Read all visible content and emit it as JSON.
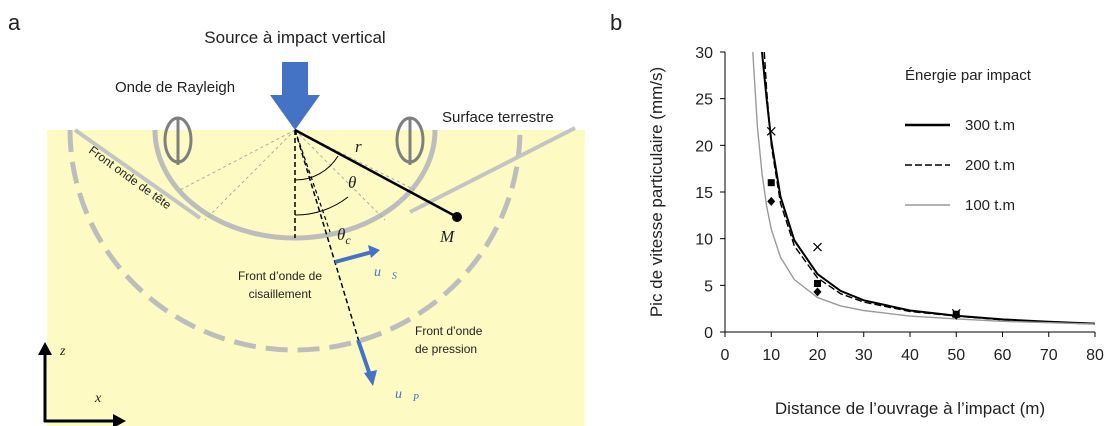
{
  "panels": [
    "a",
    "b"
  ],
  "diagram": {
    "source": "Source à impact vertical",
    "rayleigh": "Onde de Rayleigh",
    "surface": "Surface terrestre",
    "head_wave": "Front onde de tête",
    "r": "r",
    "theta": "θ",
    "theta_c": {
      "text": "θ",
      "sub": "c"
    },
    "M": "M",
    "shear_front": [
      "Front d’onde de",
      "cisaillement"
    ],
    "pressure_front": [
      "Front d’onde",
      "de pression"
    ],
    "u_s": {
      "text": "u⃗",
      "sub": "S"
    },
    "u_p": {
      "text": "u⃗",
      "sub": "P"
    },
    "z": "z",
    "x": "x"
  },
  "chart_data": {
    "type": "line",
    "x_label": "Distance de l’ouvrage à l’impact (m)",
    "y_label": "Pic de vitesse particulaire (mm/s)",
    "legend_title": "Énergie par impact",
    "legend_position": "upper right",
    "xlim": [
      0,
      80
    ],
    "xticks": [
      0,
      10,
      20,
      30,
      40,
      50,
      60,
      70,
      80
    ],
    "ylim": [
      0,
      30
    ],
    "yticks": [
      0,
      5,
      10,
      15,
      20,
      25,
      30
    ],
    "series": [
      {
        "name": "300 t.m",
        "color": "#000000",
        "line_style": "solid",
        "x": [
          8,
          9,
          10,
          12,
          15,
          20,
          25,
          30,
          40,
          50,
          60,
          70,
          80
        ],
        "values": [
          30,
          25,
          20.5,
          14.5,
          9.8,
          6.2,
          4.4,
          3.4,
          2.3,
          1.75,
          1.35,
          1.1,
          0.9
        ]
      },
      {
        "name": "200 t.m",
        "color": "#000000",
        "line_style": "dashed",
        "x": [
          8.5,
          9,
          10,
          12,
          15,
          20,
          25,
          30,
          40,
          50,
          60,
          70,
          80
        ],
        "values": [
          30,
          26,
          20,
          13.8,
          9.2,
          5.8,
          4.1,
          3.2,
          2.2,
          1.7,
          1.3,
          1.05,
          0.85
        ]
      },
      {
        "name": "100 t.m",
        "color": "#9a9a9a",
        "line_style": "solid",
        "x": [
          6,
          7,
          8,
          9,
          10,
          12,
          15,
          20,
          25,
          30,
          40,
          50,
          60,
          70,
          80
        ],
        "values": [
          30,
          22,
          17,
          13.5,
          11,
          8,
          5.6,
          3.7,
          2.8,
          2.3,
          1.7,
          1.4,
          1.15,
          1,
          0.85
        ]
      },
      {
        "color": "#000000",
        "marker": "square",
        "x": [
          10,
          20,
          50
        ],
        "values": [
          16,
          5.2,
          1.9
        ]
      },
      {
        "color": "#000000",
        "marker": "diamond",
        "x": [
          10,
          20,
          50
        ],
        "values": [
          14,
          4.3,
          1.8
        ]
      },
      {
        "color": "#000000",
        "marker": "x",
        "x": [
          10,
          20,
          50
        ],
        "values": [
          21.5,
          9.1,
          2
        ]
      }
    ]
  }
}
